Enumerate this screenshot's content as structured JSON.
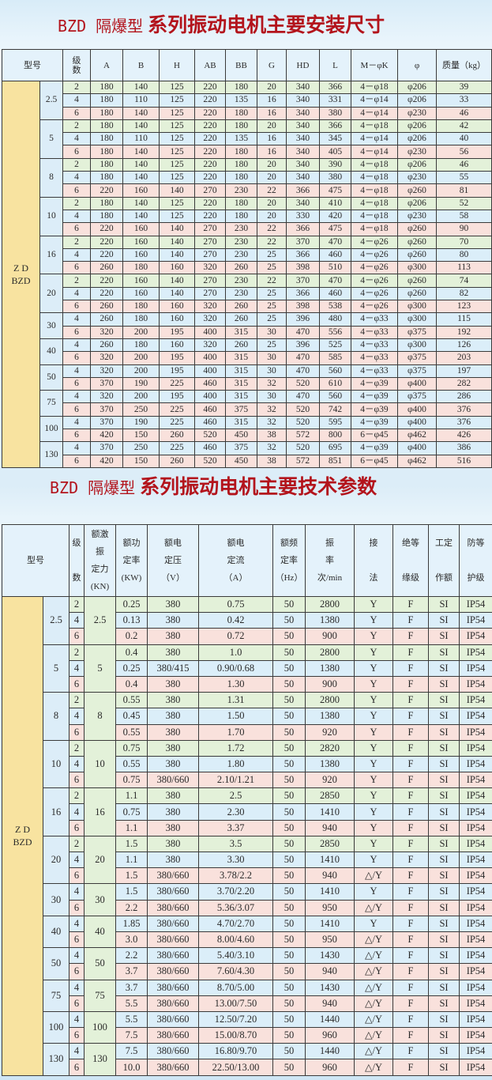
{
  "table1": {
    "title_prefix": "BZD 隔爆型",
    "title_main": "系列振动电机主要安装尺寸",
    "headers": [
      "型号",
      "级\n数",
      "A",
      "B",
      "H",
      "AB",
      "BB",
      "G",
      "HD",
      "L",
      "M－φK",
      "φ",
      "质量（kg）"
    ],
    "model": "Z D\nBZD",
    "groups": [
      {
        "size": "2.5",
        "rows": [
          [
            "2",
            "180",
            "140",
            "125",
            "220",
            "180",
            "20",
            "340",
            "366",
            "4－φ18",
            "φ206",
            "39"
          ],
          [
            "4",
            "180",
            "110",
            "125",
            "220",
            "135",
            "16",
            "340",
            "331",
            "4－φ14",
            "φ206",
            "33"
          ],
          [
            "6",
            "180",
            "140",
            "125",
            "220",
            "180",
            "16",
            "340",
            "380",
            "4－φ14",
            "φ230",
            "46"
          ]
        ]
      },
      {
        "size": "5",
        "rows": [
          [
            "2",
            "180",
            "140",
            "125",
            "220",
            "180",
            "20",
            "340",
            "366",
            "4－φ18",
            "φ206",
            "42"
          ],
          [
            "4",
            "180",
            "110",
            "125",
            "220",
            "135",
            "16",
            "340",
            "345",
            "4－φ14",
            "φ206",
            "40"
          ],
          [
            "6",
            "180",
            "140",
            "125",
            "220",
            "180",
            "16",
            "340",
            "405",
            "4－φ14",
            "φ230",
            "56"
          ]
        ]
      },
      {
        "size": "8",
        "rows": [
          [
            "2",
            "180",
            "140",
            "125",
            "220",
            "180",
            "20",
            "340",
            "390",
            "4－φ18",
            "φ206",
            "46"
          ],
          [
            "4",
            "180",
            "140",
            "125",
            "220",
            "180",
            "20",
            "340",
            "380",
            "4－φ18",
            "φ230",
            "55"
          ],
          [
            "6",
            "220",
            "160",
            "140",
            "270",
            "230",
            "22",
            "366",
            "475",
            "4－φ18",
            "φ260",
            "81"
          ]
        ]
      },
      {
        "size": "10",
        "rows": [
          [
            "2",
            "180",
            "140",
            "125",
            "220",
            "180",
            "20",
            "340",
            "410",
            "4－φ18",
            "φ206",
            "52"
          ],
          [
            "4",
            "180",
            "140",
            "125",
            "220",
            "180",
            "20",
            "330",
            "420",
            "4－φ18",
            "φ230",
            "58"
          ],
          [
            "6",
            "220",
            "160",
            "140",
            "270",
            "230",
            "22",
            "366",
            "475",
            "4－φ18",
            "φ260",
            "90"
          ]
        ]
      },
      {
        "size": "16",
        "rows": [
          [
            "2",
            "220",
            "160",
            "140",
            "270",
            "230",
            "22",
            "370",
            "470",
            "4－φ26",
            "φ260",
            "70"
          ],
          [
            "4",
            "220",
            "160",
            "140",
            "270",
            "230",
            "25",
            "366",
            "460",
            "4－φ26",
            "φ260",
            "80"
          ],
          [
            "6",
            "260",
            "180",
            "160",
            "320",
            "260",
            "25",
            "398",
            "510",
            "4－φ26",
            "φ300",
            "113"
          ]
        ]
      },
      {
        "size": "20",
        "rows": [
          [
            "2",
            "220",
            "160",
            "140",
            "270",
            "230",
            "22",
            "370",
            "470",
            "4－φ26",
            "φ260",
            "74"
          ],
          [
            "4",
            "220",
            "160",
            "140",
            "270",
            "230",
            "25",
            "366",
            "460",
            "4－φ26",
            "φ260",
            "82"
          ],
          [
            "6",
            "260",
            "180",
            "160",
            "320",
            "260",
            "25",
            "398",
            "538",
            "4－φ26",
            "φ300",
            "123"
          ]
        ]
      },
      {
        "size": "30",
        "rows": [
          [
            "4",
            "260",
            "180",
            "160",
            "320",
            "260",
            "25",
            "396",
            "480",
            "4－φ33",
            "φ300",
            "115"
          ],
          [
            "6",
            "320",
            "200",
            "195",
            "400",
            "315",
            "30",
            "470",
            "556",
            "4－φ33",
            "φ375",
            "192"
          ]
        ]
      },
      {
        "size": "40",
        "rows": [
          [
            "4",
            "260",
            "180",
            "160",
            "320",
            "260",
            "25",
            "396",
            "525",
            "4－φ33",
            "φ300",
            "126"
          ],
          [
            "6",
            "320",
            "200",
            "195",
            "400",
            "315",
            "30",
            "470",
            "585",
            "4－φ33",
            "φ375",
            "203"
          ]
        ]
      },
      {
        "size": "50",
        "rows": [
          [
            "4",
            "320",
            "200",
            "195",
            "400",
            "315",
            "30",
            "470",
            "560",
            "4－φ33",
            "φ375",
            "197"
          ],
          [
            "6",
            "370",
            "190",
            "225",
            "460",
            "315",
            "32",
            "520",
            "610",
            "4－φ39",
            "φ400",
            "282"
          ]
        ]
      },
      {
        "size": "75",
        "rows": [
          [
            "4",
            "320",
            "200",
            "195",
            "400",
            "315",
            "30",
            "470",
            "560",
            "4－φ39",
            "φ375",
            "286"
          ],
          [
            "6",
            "370",
            "250",
            "225",
            "460",
            "375",
            "32",
            "520",
            "742",
            "4－φ39",
            "φ400",
            "376"
          ]
        ]
      },
      {
        "size": "100",
        "rows": [
          [
            "4",
            "370",
            "190",
            "225",
            "460",
            "315",
            "32",
            "520",
            "595",
            "4－φ39",
            "φ400",
            "376"
          ],
          [
            "6",
            "420",
            "150",
            "260",
            "520",
            "450",
            "38",
            "572",
            "800",
            "6－φ45",
            "φ462",
            "426"
          ]
        ]
      },
      {
        "size": "130",
        "rows": [
          [
            "4",
            "370",
            "250",
            "225",
            "460",
            "375",
            "32",
            "520",
            "695",
            "4－φ39",
            "φ400",
            "386"
          ],
          [
            "6",
            "420",
            "150",
            "260",
            "520",
            "450",
            "38",
            "572",
            "851",
            "6－φ45",
            "φ462",
            "516"
          ]
        ]
      }
    ]
  },
  "table2": {
    "title_prefix": "BZD 隔爆型",
    "title_main": "系列振动电机主要技术参数",
    "headers": [
      "型号",
      "级\n\n数",
      "额激\n振\n定力\n(KN)",
      "额功\n定率\n(KW)",
      "额电\n定压\n（V）",
      "额电\n定流\n（A）",
      "额频\n定率\n（Hz）",
      "振\n率\n次/min",
      "接\n\n法",
      "绝等\n\n缘级",
      "工定\n\n作额",
      "防等\n\n护级"
    ],
    "model": "Z D\nBZD",
    "groups": [
      {
        "size": "2.5",
        "force": "2.5",
        "rows": [
          [
            "2",
            "0.25",
            "380",
            "0.75",
            "50",
            "2800",
            "Y",
            "F",
            "SI",
            "IP54"
          ],
          [
            "4",
            "0.13",
            "380",
            "0.42",
            "50",
            "1380",
            "Y",
            "F",
            "SI",
            "IP54"
          ],
          [
            "6",
            "0.2",
            "380",
            "0.72",
            "50",
            "900",
            "Y",
            "F",
            "SI",
            "IP54"
          ]
        ]
      },
      {
        "size": "5",
        "force": "5",
        "rows": [
          [
            "2",
            "0.4",
            "380",
            "1.0",
            "50",
            "2800",
            "Y",
            "F",
            "SI",
            "IP54"
          ],
          [
            "4",
            "0.25",
            "380/415",
            "0.90/0.68",
            "50",
            "1380",
            "Y",
            "F",
            "SI",
            "IP54"
          ],
          [
            "6",
            "0.4",
            "380",
            "1.30",
            "50",
            "900",
            "Y",
            "F",
            "SI",
            "IP54"
          ]
        ]
      },
      {
        "size": "8",
        "force": "8",
        "rows": [
          [
            "2",
            "0.55",
            "380",
            "1.31",
            "50",
            "2800",
            "Y",
            "F",
            "SI",
            "IP54"
          ],
          [
            "4",
            "0.45",
            "380",
            "1.50",
            "50",
            "1380",
            "Y",
            "F",
            "SI",
            "IP54"
          ],
          [
            "6",
            "0.55",
            "380",
            "1.70",
            "50",
            "920",
            "Y",
            "F",
            "SI",
            "IP54"
          ]
        ]
      },
      {
        "size": "10",
        "force": "10",
        "rows": [
          [
            "2",
            "0.75",
            "380",
            "1.72",
            "50",
            "2820",
            "Y",
            "F",
            "SI",
            "IP54"
          ],
          [
            "4",
            "0.55",
            "380",
            "1.80",
            "50",
            "1380",
            "Y",
            "F",
            "SI",
            "IP54"
          ],
          [
            "6",
            "0.75",
            "380/660",
            "2.10/1.21",
            "50",
            "920",
            "Y",
            "F",
            "SI",
            "IP54"
          ]
        ]
      },
      {
        "size": "16",
        "force": "16",
        "rows": [
          [
            "2",
            "1.1",
            "380",
            "2.5",
            "50",
            "2850",
            "Y",
            "F",
            "SI",
            "IP54"
          ],
          [
            "4",
            "0.75",
            "380",
            "2.30",
            "50",
            "1410",
            "Y",
            "F",
            "SI",
            "IP54"
          ],
          [
            "6",
            "1.1",
            "380",
            "3.37",
            "50",
            "940",
            "Y",
            "F",
            "SI",
            "IP54"
          ]
        ]
      },
      {
        "size": "20",
        "force": "20",
        "rows": [
          [
            "2",
            "1.5",
            "380",
            "3.5",
            "50",
            "2850",
            "Y",
            "F",
            "SI",
            "IP54"
          ],
          [
            "4",
            "1.1",
            "380",
            "3.30",
            "50",
            "1410",
            "Y",
            "F",
            "SI",
            "IP54"
          ],
          [
            "6",
            "1.5",
            "380/660",
            "3.78/2.2",
            "50",
            "940",
            "△/Y",
            "F",
            "SI",
            "IP54"
          ]
        ]
      },
      {
        "size": "30",
        "force": "30",
        "rows": [
          [
            "4",
            "1.5",
            "380/660",
            "3.70/2.20",
            "50",
            "1410",
            "Y",
            "F",
            "SI",
            "IP54"
          ],
          [
            "6",
            "2.2",
            "380/660",
            "5.36/3.07",
            "50",
            "950",
            "△/Y",
            "F",
            "SI",
            "IP54"
          ]
        ]
      },
      {
        "size": "40",
        "force": "40",
        "rows": [
          [
            "4",
            "1.85",
            "380/660",
            "4.70/2.70",
            "50",
            "1410",
            "Y",
            "F",
            "SI",
            "IP54"
          ],
          [
            "6",
            "3.0",
            "380/660",
            "8.00/4.60",
            "50",
            "950",
            "△/Y",
            "F",
            "SI",
            "IP54"
          ]
        ]
      },
      {
        "size": "50",
        "force": "50",
        "rows": [
          [
            "4",
            "2.2",
            "380/660",
            "5.40/3.10",
            "50",
            "1430",
            "△/Y",
            "F",
            "SI",
            "IP54"
          ],
          [
            "6",
            "3.7",
            "380/660",
            "7.60/4.30",
            "50",
            "940",
            "△/Y",
            "F",
            "SI",
            "IP54"
          ]
        ]
      },
      {
        "size": "75",
        "force": "75",
        "rows": [
          [
            "4",
            "3.7",
            "380/660",
            "8.70/5.00",
            "50",
            "1430",
            "△/Y",
            "F",
            "SI",
            "IP54"
          ],
          [
            "6",
            "5.5",
            "380/660",
            "13.00/7.50",
            "50",
            "940",
            "△/Y",
            "F",
            "SI",
            "IP54"
          ]
        ]
      },
      {
        "size": "100",
        "force": "100",
        "rows": [
          [
            "4",
            "5.5",
            "380/660",
            "12.50/7.20",
            "50",
            "1440",
            "△/Y",
            "F",
            "SI",
            "IP54"
          ],
          [
            "6",
            "7.5",
            "380/660",
            "15.00/8.70",
            "50",
            "960",
            "△/Y",
            "F",
            "SI",
            "IP54"
          ]
        ]
      },
      {
        "size": "130",
        "force": "130",
        "rows": [
          [
            "4",
            "7.5",
            "380/660",
            "16.80/9.70",
            "50",
            "1440",
            "△/Y",
            "F",
            "SI",
            "IP54"
          ],
          [
            "6",
            "10.0",
            "380/660",
            "22.50/13.00",
            "50",
            "960",
            "△/Y",
            "F",
            "SI",
            "IP54"
          ]
        ]
      }
    ]
  }
}
